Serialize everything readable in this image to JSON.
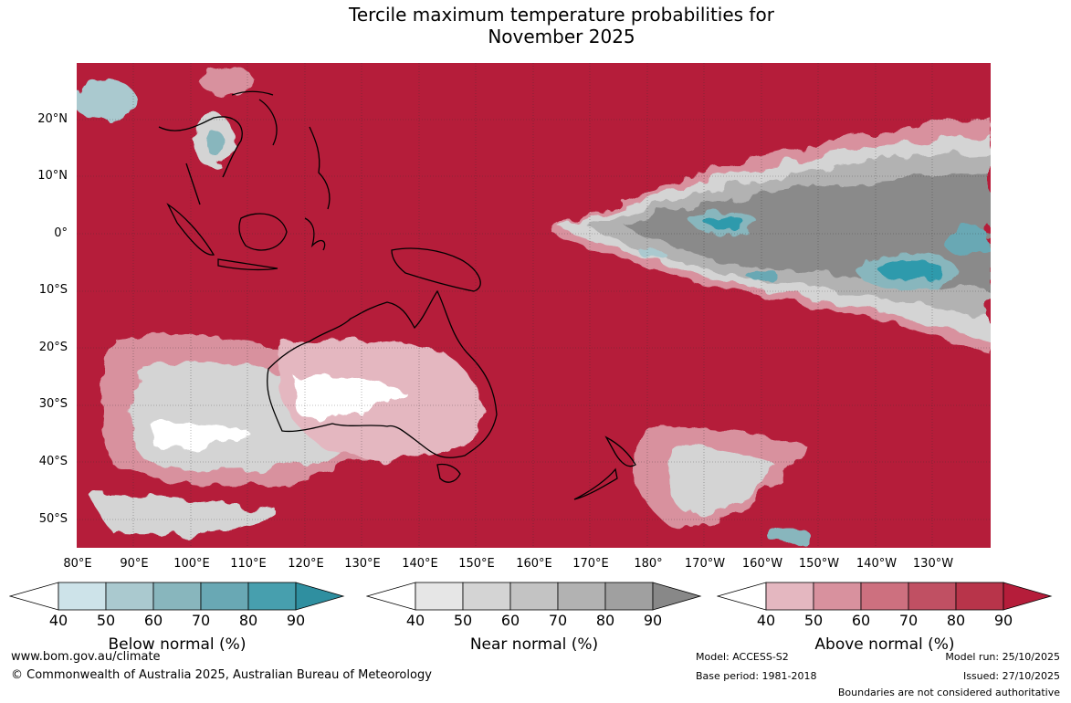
{
  "title": {
    "line1": "Tercile maximum temperature probabilities for",
    "line2": "November 2025"
  },
  "map": {
    "lat_labels": [
      "20°N",
      "10°N",
      "0°",
      "10°S",
      "20°S",
      "30°S",
      "40°S",
      "50°S"
    ],
    "lon_labels": [
      "80°E",
      "90°E",
      "100°E",
      "110°E",
      "120°E",
      "130°E",
      "140°E",
      "150°E",
      "160°E",
      "170°E",
      "180°",
      "170°W",
      "160°W",
      "150°W",
      "140°W",
      "130°W"
    ],
    "colors": {
      "above_90": "#b51d3a",
      "ocean_base": "#b51d3a",
      "near_grey": "#8a8a8a",
      "below_teal": "#2f9aac"
    }
  },
  "colorbars": {
    "ticks": [
      "40",
      "50",
      "60",
      "70",
      "80",
      "90"
    ],
    "below": {
      "label": "Below normal (%)",
      "colors": [
        "#ffffff",
        "#cde3e9",
        "#aac9cf",
        "#88b6bd",
        "#69a8b4",
        "#479fae",
        "#2f8fa0"
      ]
    },
    "near": {
      "label": "Near normal (%)",
      "colors": [
        "#ffffff",
        "#e6e6e6",
        "#d4d4d4",
        "#c3c3c3",
        "#b2b2b2",
        "#a0a0a0",
        "#888888"
      ]
    },
    "above": {
      "label": "Above normal (%)",
      "colors": [
        "#ffffff",
        "#e4b7c0",
        "#d8919e",
        "#cd707f",
        "#c05063",
        "#b8344a",
        "#b51d3a"
      ]
    }
  },
  "footer": {
    "url": "www.bom.gov.au/climate",
    "copyright": "© Commonwealth of Australia 2025, Australian Bureau of Meteorology",
    "model": "Model: ACCESS-S2",
    "base_period": "Base period: 1981-2018",
    "model_run": "Model run: 25/10/2025",
    "issued": "Issued: 27/10/2025",
    "boundaries": "Boundaries are not considered authoritative"
  }
}
